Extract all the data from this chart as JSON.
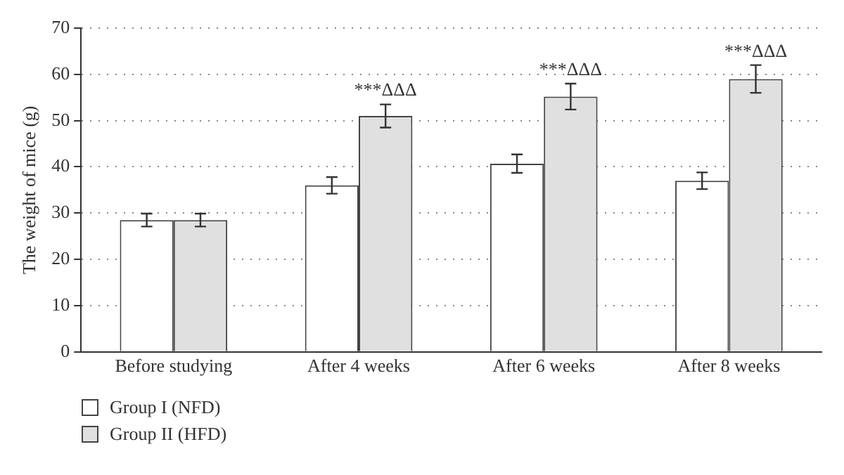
{
  "chart_data": {
    "type": "bar",
    "ylabel": "The weight of mice (g)",
    "categories": [
      "Before studying",
      "After 4 weeks",
      "After 6 weeks",
      "After 8 weeks"
    ],
    "series": [
      {
        "name": "Group I (NFD)",
        "color": "#ffffff",
        "values": [
          28.5,
          36,
          40.7,
          37
        ],
        "errors": [
          1.4,
          1.8,
          2,
          1.8
        ]
      },
      {
        "name": "Group II (HFD)",
        "color": "#e0e0e0",
        "values": [
          28.5,
          51,
          55.2,
          59
        ],
        "errors": [
          1.4,
          2.5,
          2.8,
          3
        ]
      }
    ],
    "ylim": [
      0,
      70
    ],
    "yticks": [
      0,
      10,
      20,
      30,
      40,
      50,
      60,
      70
    ],
    "grid": "y",
    "legend": "bottom left",
    "annotations": [
      {
        "text": "***ΔΔΔ",
        "x": "After 4 weeks",
        "y": 51
      },
      {
        "text": "***ΔΔΔ",
        "x": "After 6 weeks",
        "y": 55.2
      },
      {
        "text": "***ΔΔΔ",
        "x": "After 8 weeks",
        "y": 59
      }
    ]
  }
}
